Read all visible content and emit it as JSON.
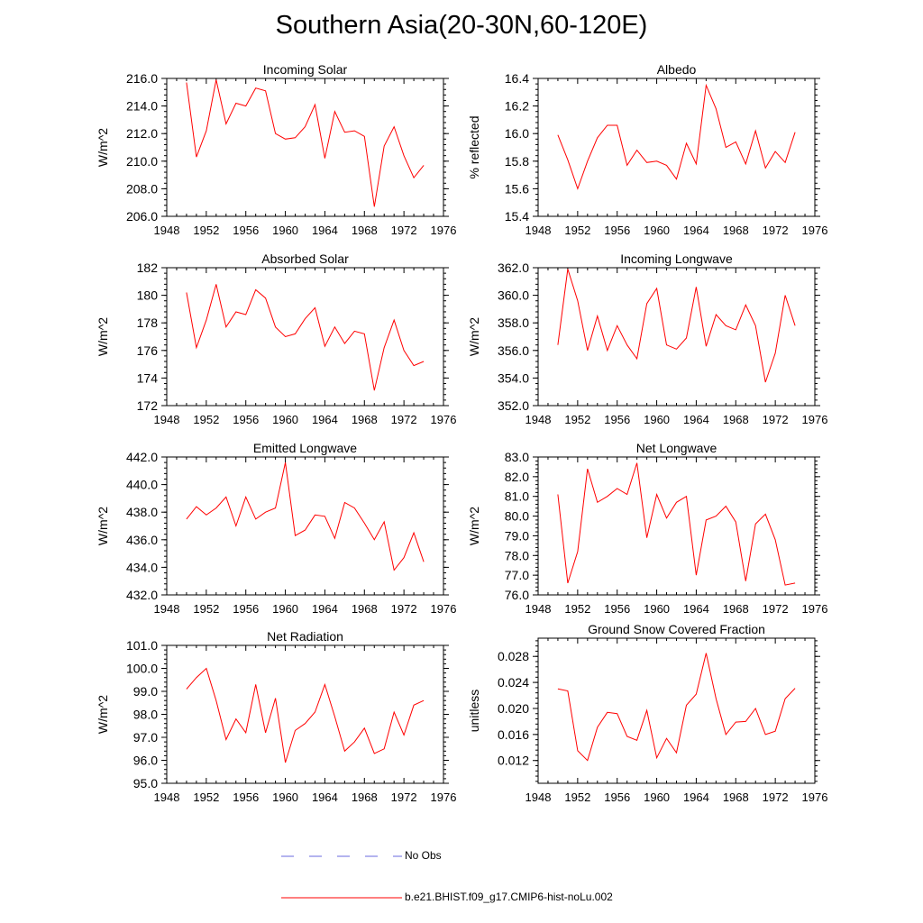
{
  "page": {
    "title": "Southern Asia(20-30N,60-120E)"
  },
  "legend": [
    {
      "label": "No Obs",
      "color": "#6a6adf",
      "style": "dashed"
    },
    {
      "label": "b.e21.BHIST.f09_g17.CMIP6-hist-noLu.002",
      "color": "#ff0000",
      "style": "solid"
    }
  ],
  "chart_data": [
    {
      "type": "line",
      "title": "Incoming Solar",
      "xlabel": "",
      "ylabel": "W/m^2",
      "xlim": [
        1948,
        1976
      ],
      "ylim": [
        206.0,
        216.0
      ],
      "xticks": [
        1948,
        1952,
        1956,
        1960,
        1964,
        1968,
        1972,
        1976
      ],
      "yticks": [
        "206.0",
        "208.0",
        "210.0",
        "212.0",
        "214.0",
        "216.0"
      ],
      "series": [
        {
          "color": "#ff0000",
          "x": [
            1950,
            1951,
            1952,
            1953,
            1954,
            1955,
            1956,
            1957,
            1958,
            1959,
            1960,
            1961,
            1962,
            1963,
            1964,
            1965,
            1966,
            1967,
            1968,
            1969,
            1970,
            1971,
            1972,
            1973,
            1974
          ],
          "y": [
            215.7,
            210.3,
            212.2,
            215.9,
            212.7,
            214.2,
            214.0,
            215.3,
            215.1,
            212.0,
            211.6,
            211.7,
            212.5,
            214.1,
            210.2,
            213.6,
            212.1,
            212.2,
            211.8,
            206.7,
            211.1,
            212.5,
            210.4,
            208.8,
            209.7
          ]
        }
      ]
    },
    {
      "type": "line",
      "title": "Albedo",
      "xlabel": "",
      "ylabel": "% reflected",
      "xlim": [
        1948,
        1976
      ],
      "ylim": [
        15.4,
        16.4
      ],
      "xticks": [
        1948,
        1952,
        1956,
        1960,
        1964,
        1968,
        1972,
        1976
      ],
      "yticks": [
        "15.4",
        "15.6",
        "15.8",
        "16.0",
        "16.2",
        "16.4"
      ],
      "series": [
        {
          "color": "#ff0000",
          "x": [
            1950,
            1951,
            1952,
            1953,
            1954,
            1955,
            1956,
            1957,
            1958,
            1959,
            1960,
            1961,
            1962,
            1963,
            1964,
            1965,
            1966,
            1967,
            1968,
            1969,
            1970,
            1971,
            1972,
            1973,
            1974
          ],
          "y": [
            15.99,
            15.81,
            15.6,
            15.8,
            15.97,
            16.06,
            16.06,
            15.77,
            15.88,
            15.79,
            15.8,
            15.77,
            15.67,
            15.93,
            15.78,
            16.35,
            16.18,
            15.9,
            15.94,
            15.78,
            16.02,
            15.75,
            15.87,
            15.79,
            16.01
          ]
        }
      ]
    },
    {
      "type": "line",
      "title": "Absorbed Solar",
      "xlabel": "",
      "ylabel": "W/m^2",
      "xlim": [
        1948,
        1976
      ],
      "ylim": [
        172,
        182
      ],
      "xticks": [
        1948,
        1952,
        1956,
        1960,
        1964,
        1968,
        1972,
        1976
      ],
      "yticks": [
        "172",
        "174",
        "176",
        "178",
        "180",
        "182"
      ],
      "series": [
        {
          "color": "#ff0000",
          "x": [
            1950,
            1951,
            1952,
            1953,
            1954,
            1955,
            1956,
            1957,
            1958,
            1959,
            1960,
            1961,
            1962,
            1963,
            1964,
            1965,
            1966,
            1967,
            1968,
            1969,
            1970,
            1971,
            1972,
            1973,
            1974
          ],
          "y": [
            180.2,
            176.2,
            178.2,
            180.8,
            177.7,
            178.8,
            178.6,
            180.4,
            179.8,
            177.7,
            177.0,
            177.2,
            178.3,
            179.1,
            176.3,
            177.7,
            176.5,
            177.4,
            177.2,
            173.1,
            176.2,
            178.2,
            176.0,
            174.9,
            175.2
          ]
        }
      ]
    },
    {
      "type": "line",
      "title": "Incoming Longwave",
      "xlabel": "",
      "ylabel": "W/m^2",
      "xlim": [
        1948,
        1976
      ],
      "ylim": [
        352.0,
        362.0
      ],
      "xticks": [
        1948,
        1952,
        1956,
        1960,
        1964,
        1968,
        1972,
        1976
      ],
      "yticks": [
        "352.0",
        "354.0",
        "356.0",
        "358.0",
        "360.0",
        "362.0"
      ],
      "series": [
        {
          "color": "#ff0000",
          "x": [
            1950,
            1951,
            1952,
            1953,
            1954,
            1955,
            1956,
            1957,
            1958,
            1959,
            1960,
            1961,
            1962,
            1963,
            1964,
            1965,
            1966,
            1967,
            1968,
            1969,
            1970,
            1971,
            1972,
            1973,
            1974
          ],
          "y": [
            356.4,
            361.9,
            359.6,
            356.0,
            358.5,
            356.0,
            357.8,
            356.4,
            355.4,
            359.4,
            360.5,
            356.4,
            356.1,
            356.9,
            360.6,
            356.3,
            358.6,
            357.8,
            357.5,
            359.3,
            357.8,
            353.7,
            355.8,
            360.0,
            357.8
          ]
        }
      ]
    },
    {
      "type": "line",
      "title": "Emitted Longwave",
      "xlabel": "",
      "ylabel": "W/m^2",
      "xlim": [
        1948,
        1976
      ],
      "ylim": [
        432.0,
        442.0
      ],
      "xticks": [
        1948,
        1952,
        1956,
        1960,
        1964,
        1968,
        1972,
        1976
      ],
      "yticks": [
        "432.0",
        "434.0",
        "436.0",
        "438.0",
        "440.0",
        "442.0"
      ],
      "series": [
        {
          "color": "#ff0000",
          "x": [
            1950,
            1951,
            1952,
            1953,
            1954,
            1955,
            1956,
            1957,
            1958,
            1959,
            1960,
            1961,
            1962,
            1963,
            1964,
            1965,
            1966,
            1967,
            1968,
            1969,
            1970,
            1971,
            1972,
            1973,
            1974
          ],
          "y": [
            437.5,
            438.4,
            437.8,
            438.3,
            439.1,
            437.0,
            439.1,
            437.5,
            438.0,
            438.3,
            441.6,
            436.3,
            436.7,
            437.8,
            437.7,
            436.1,
            438.7,
            438.3,
            437.2,
            436.0,
            437.3,
            433.8,
            434.7,
            436.5,
            434.4
          ]
        }
      ]
    },
    {
      "type": "line",
      "title": "Net Longwave",
      "xlabel": "",
      "ylabel": "W/m^2",
      "xlim": [
        1948,
        1976
      ],
      "ylim": [
        76.0,
        83.0
      ],
      "xticks": [
        1948,
        1952,
        1956,
        1960,
        1964,
        1968,
        1972,
        1976
      ],
      "yticks": [
        "76.0",
        "77.0",
        "78.0",
        "79.0",
        "80.0",
        "81.0",
        "82.0",
        "83.0"
      ],
      "series": [
        {
          "color": "#ff0000",
          "x": [
            1950,
            1951,
            1952,
            1953,
            1954,
            1955,
            1956,
            1957,
            1958,
            1959,
            1960,
            1961,
            1962,
            1963,
            1964,
            1965,
            1966,
            1967,
            1968,
            1969,
            1970,
            1971,
            1972,
            1973,
            1974
          ],
          "y": [
            81.1,
            76.6,
            78.2,
            82.4,
            80.7,
            81.0,
            81.4,
            81.1,
            82.7,
            78.9,
            81.1,
            79.9,
            80.7,
            81.0,
            77.0,
            79.8,
            80.0,
            80.5,
            79.7,
            76.7,
            79.6,
            80.1,
            78.8,
            76.5,
            76.6
          ]
        }
      ]
    },
    {
      "type": "line",
      "title": "Net Radiation",
      "xlabel": "",
      "ylabel": "W/m^2",
      "xlim": [
        1948,
        1976
      ],
      "ylim": [
        95.0,
        101.0
      ],
      "xticks": [
        1948,
        1952,
        1956,
        1960,
        1964,
        1968,
        1972,
        1976
      ],
      "yticks": [
        "95.0",
        "96.0",
        "97.0",
        "98.0",
        "99.0",
        "100.0",
        "101.0"
      ],
      "series": [
        {
          "color": "#ff0000",
          "x": [
            1950,
            1951,
            1952,
            1953,
            1954,
            1955,
            1956,
            1957,
            1958,
            1959,
            1960,
            1961,
            1962,
            1963,
            1964,
            1965,
            1966,
            1967,
            1968,
            1969,
            1970,
            1971,
            1972,
            1973,
            1974
          ],
          "y": [
            99.1,
            99.6,
            100.0,
            98.6,
            96.9,
            97.8,
            97.2,
            99.3,
            97.2,
            98.7,
            95.9,
            97.3,
            97.6,
            98.1,
            99.3,
            97.9,
            96.4,
            96.8,
            97.4,
            96.3,
            96.5,
            98.1,
            97.1,
            98.4,
            98.6
          ]
        }
      ]
    },
    {
      "type": "line",
      "title": "Ground Snow Covered Fraction",
      "xlabel": "",
      "ylabel": "unitless",
      "xlim": [
        1948,
        1976
      ],
      "ylim": [
        0.0085,
        0.0308
      ],
      "xticks": [
        1948,
        1952,
        1956,
        1960,
        1964,
        1968,
        1972,
        1976
      ],
      "yticks": [
        "0.012",
        "0.016",
        "0.020",
        "0.024",
        "0.028"
      ],
      "series": [
        {
          "color": "#ff0000",
          "x": [
            1950,
            1951,
            1952,
            1953,
            1954,
            1955,
            1956,
            1957,
            1958,
            1959,
            1960,
            1961,
            1962,
            1963,
            1964,
            1965,
            1966,
            1967,
            1968,
            1969,
            1970,
            1971,
            1972,
            1973,
            1974
          ],
          "y": [
            0.023,
            0.0227,
            0.0135,
            0.012,
            0.0171,
            0.0194,
            0.0192,
            0.0157,
            0.0151,
            0.0197,
            0.0124,
            0.0154,
            0.0132,
            0.0205,
            0.0222,
            0.0285,
            0.0215,
            0.016,
            0.0179,
            0.018,
            0.02,
            0.016,
            0.0165,
            0.0215,
            0.0231
          ]
        }
      ]
    }
  ]
}
